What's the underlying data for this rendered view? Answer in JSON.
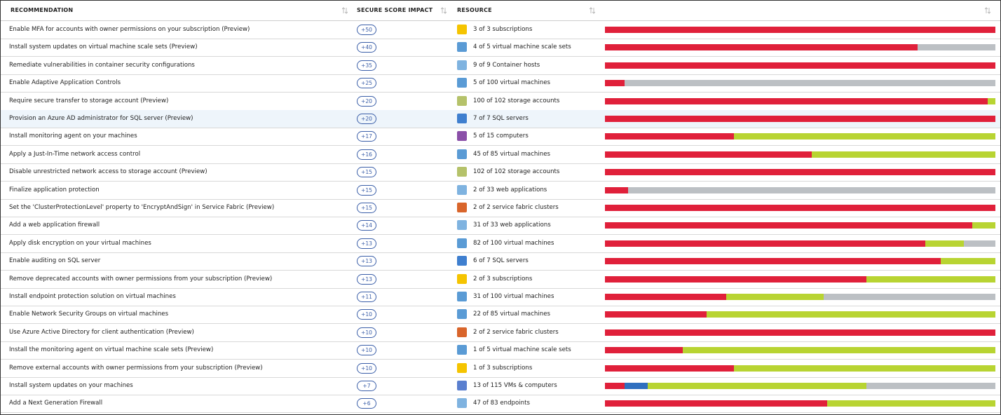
{
  "header": {
    "columns": [
      "RECOMMENDATION",
      "SECURE SCORE IMPACT",
      "RESOURCE"
    ]
  },
  "selected_row": 5,
  "table": {
    "rows": [
      {
        "recommendation": "Enable MFA for accounts with owner permissions on your subscription (Preview)",
        "impact": "+50",
        "resource": "3 of 3 subscriptions",
        "icon_color": "#f5c400",
        "bar": [
          {
            "color": "#e0203a",
            "value": 100
          }
        ]
      },
      {
        "recommendation": "Install system updates on virtual machine scale sets (Preview)",
        "impact": "+40",
        "resource": "4 of 5 virtual machine scale sets",
        "icon_color": "#5a9bd5",
        "bar": [
          {
            "color": "#e0203a",
            "value": 80
          },
          {
            "color": "#bcc0c4",
            "value": 20
          }
        ]
      },
      {
        "recommendation": "Remediate vulnerabilities in container security configurations",
        "impact": "+35",
        "resource": "9 of 9 Container hosts",
        "icon_color": "#7fb3e0",
        "bar": [
          {
            "color": "#e0203a",
            "value": 100
          }
        ]
      },
      {
        "recommendation": "Enable Adaptive Application Controls",
        "impact": "+25",
        "resource": "5 of 100 virtual machines",
        "icon_color": "#5a9bd5",
        "bar": [
          {
            "color": "#e0203a",
            "value": 5
          },
          {
            "color": "#bcc0c4",
            "value": 95
          }
        ]
      },
      {
        "recommendation": "Require secure transfer to storage account (Preview)",
        "impact": "+20",
        "resource": "100 of 102 storage accounts",
        "icon_color": "#b5c26a",
        "bar": [
          {
            "color": "#e0203a",
            "value": 98
          },
          {
            "color": "#b8d432",
            "value": 2
          }
        ]
      },
      {
        "recommendation": "Provision an Azure AD administrator for SQL server (Preview)",
        "impact": "+20",
        "resource": "7 of 7 SQL servers",
        "icon_color": "#3f7fcf",
        "bar": [
          {
            "color": "#e0203a",
            "value": 100
          }
        ]
      },
      {
        "recommendation": "Install monitoring agent on your machines",
        "impact": "+17",
        "resource": "5 of 15 computers",
        "icon_color": "#8a4fa8",
        "bar": [
          {
            "color": "#e0203a",
            "value": 33
          },
          {
            "color": "#b8d432",
            "value": 67
          }
        ]
      },
      {
        "recommendation": "Apply a Just-In-Time network access control",
        "impact": "+16",
        "resource": "45 of 85 virtual machines",
        "icon_color": "#5a9bd5",
        "bar": [
          {
            "color": "#e0203a",
            "value": 53
          },
          {
            "color": "#b8d432",
            "value": 47
          }
        ]
      },
      {
        "recommendation": "Disable unrestricted network access to storage account (Preview)",
        "impact": "+15",
        "resource": "102 of 102 storage accounts",
        "icon_color": "#b5c26a",
        "bar": [
          {
            "color": "#e0203a",
            "value": 100
          }
        ]
      },
      {
        "recommendation": "Finalize application protection",
        "impact": "+15",
        "resource": "2 of 33 web applications",
        "icon_color": "#7fb3e0",
        "bar": [
          {
            "color": "#e0203a",
            "value": 6
          },
          {
            "color": "#bcc0c4",
            "value": 94
          }
        ]
      },
      {
        "recommendation": "Set the 'ClusterProtectionLevel' property to 'EncryptAndSign' in Service Fabric (Preview)",
        "impact": "+15",
        "resource": "2 of 2 service fabric clusters",
        "icon_color": "#d9652b",
        "bar": [
          {
            "color": "#e0203a",
            "value": 100
          }
        ]
      },
      {
        "recommendation": "Add a web application firewall",
        "impact": "+14",
        "resource": "31 of 33 web applications",
        "icon_color": "#7fb3e0",
        "bar": [
          {
            "color": "#e0203a",
            "value": 94
          },
          {
            "color": "#b8d432",
            "value": 6
          }
        ]
      },
      {
        "recommendation": "Apply disk encryption on your virtual machines",
        "impact": "+13",
        "resource": "82 of 100 virtual machines",
        "icon_color": "#5a9bd5",
        "bar": [
          {
            "color": "#e0203a",
            "value": 82
          },
          {
            "color": "#b8d432",
            "value": 10
          },
          {
            "color": "#bcc0c4",
            "value": 8
          }
        ]
      },
      {
        "recommendation": "Enable auditing on SQL server",
        "impact": "+13",
        "resource": "6 of 7 SQL servers",
        "icon_color": "#3f7fcf",
        "bar": [
          {
            "color": "#e0203a",
            "value": 86
          },
          {
            "color": "#b8d432",
            "value": 14
          }
        ]
      },
      {
        "recommendation": "Remove deprecated accounts with owner permissions from your subscription (Preview)",
        "impact": "+13",
        "resource": "2 of 3 subscriptions",
        "icon_color": "#f5c400",
        "bar": [
          {
            "color": "#e0203a",
            "value": 67
          },
          {
            "color": "#b8d432",
            "value": 33
          }
        ]
      },
      {
        "recommendation": "Install endpoint protection solution on virtual machines",
        "impact": "+11",
        "resource": "31 of 100 virtual machines",
        "icon_color": "#5a9bd5",
        "bar": [
          {
            "color": "#e0203a",
            "value": 31
          },
          {
            "color": "#b8d432",
            "value": 25
          },
          {
            "color": "#bcc0c4",
            "value": 44
          }
        ]
      },
      {
        "recommendation": "Enable Network Security Groups on virtual machines",
        "impact": "+10",
        "resource": "22 of 85 virtual machines",
        "icon_color": "#5a9bd5",
        "bar": [
          {
            "color": "#e0203a",
            "value": 26
          },
          {
            "color": "#b8d432",
            "value": 74
          }
        ]
      },
      {
        "recommendation": "Use Azure Active Directory for client authentication (Preview)",
        "impact": "+10",
        "resource": "2 of 2 service fabric clusters",
        "icon_color": "#d9652b",
        "bar": [
          {
            "color": "#e0203a",
            "value": 100
          }
        ]
      },
      {
        "recommendation": "Install the monitoring agent on virtual machine scale sets (Preview)",
        "impact": "+10",
        "resource": "1 of 5 virtual machine scale sets",
        "icon_color": "#5a9bd5",
        "bar": [
          {
            "color": "#e0203a",
            "value": 20
          },
          {
            "color": "#b8d432",
            "value": 80
          }
        ]
      },
      {
        "recommendation": "Remove external accounts with owner permissions from your subscription (Preview)",
        "impact": "+10",
        "resource": "1 of 3 subscriptions",
        "icon_color": "#f5c400",
        "bar": [
          {
            "color": "#e0203a",
            "value": 33
          },
          {
            "color": "#b8d432",
            "value": 67
          }
        ]
      },
      {
        "recommendation": "Install system updates on your machines",
        "impact": "+7",
        "resource": "13 of 115 VMs & computers",
        "icon_color": "#5a7fcf",
        "bar": [
          {
            "color": "#e0203a",
            "value": 5
          },
          {
            "color": "#2f6fbf",
            "value": 6
          },
          {
            "color": "#b8d432",
            "value": 56
          },
          {
            "color": "#bcc0c4",
            "value": 33
          }
        ]
      },
      {
        "recommendation": "Add a Next Generation Firewall",
        "impact": "+6",
        "resource": "47 of 83 endpoints",
        "icon_color": "#7fb3e0",
        "bar": [
          {
            "color": "#e0203a",
            "value": 57
          },
          {
            "color": "#b8d432",
            "value": 43
          }
        ]
      }
    ]
  }
}
